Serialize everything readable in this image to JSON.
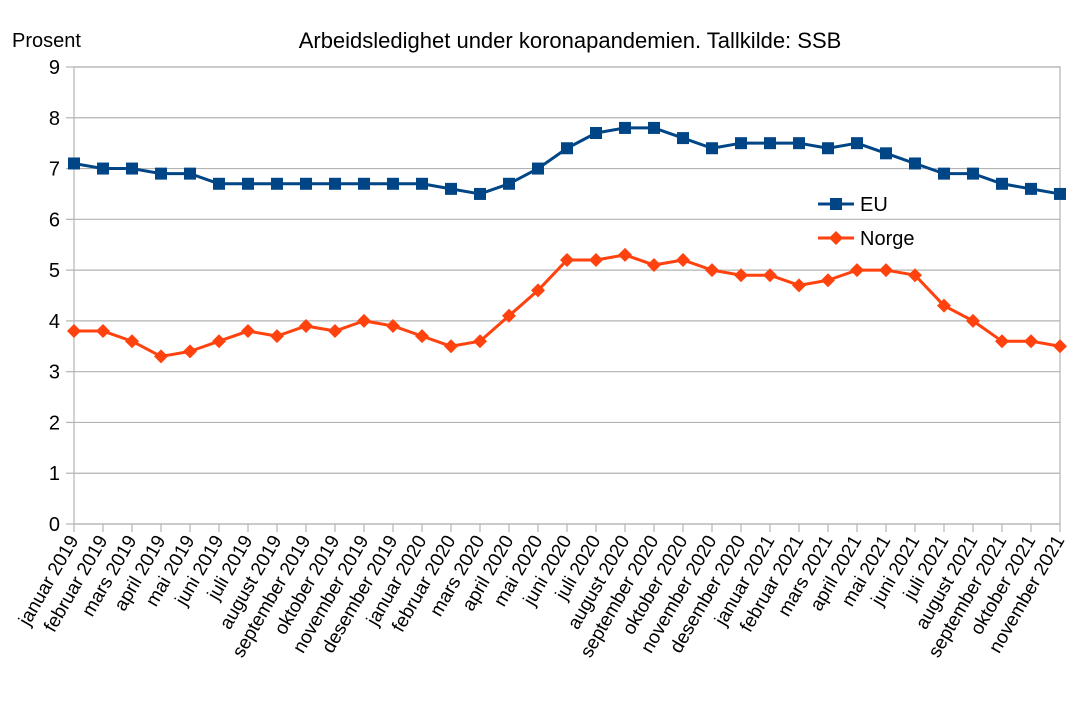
{
  "chart_data": {
    "type": "line",
    "title": "Arbeidsledighet under koronapandemien. Tallkilde: SSB",
    "ylabel": "Prosent",
    "xlabel": "",
    "ylim": [
      0,
      9
    ],
    "yticks": [
      "0",
      "1",
      "2",
      "3",
      "4",
      "5",
      "6",
      "7",
      "8",
      "9"
    ],
    "grid": "horizontal",
    "legend_position": "right",
    "categories": [
      "januar 2019",
      "februar 2019",
      "mars 2019",
      "april 2019",
      "mai 2019",
      "juni 2019",
      "juli 2019",
      "august 2019",
      "september 2019",
      "oktober 2019",
      "november 2019",
      "desember 2019",
      "januar 2020",
      "februar 2020",
      "mars 2020",
      "april 2020",
      "mai 2020",
      "juni 2020",
      "juli 2020",
      "august 2020",
      "september 2020",
      "oktober 2020",
      "november 2020",
      "desember 2020",
      "januar 2021",
      "februar 2021",
      "mars 2021",
      "april 2021",
      "mai 2021",
      "juni 2021",
      "juli 2021",
      "august 2021",
      "september 2021",
      "oktober 2021",
      "november 2021"
    ],
    "series": [
      {
        "name": "EU",
        "color": "#004586",
        "marker": "square",
        "values": [
          7.1,
          7.0,
          7.0,
          6.9,
          6.9,
          6.7,
          6.7,
          6.7,
          6.7,
          6.7,
          6.7,
          6.7,
          6.7,
          6.6,
          6.5,
          6.7,
          7.0,
          7.4,
          7.7,
          7.8,
          7.8,
          7.6,
          7.4,
          7.5,
          7.5,
          7.5,
          7.4,
          7.5,
          7.3,
          7.1,
          6.9,
          6.9,
          6.7,
          6.6,
          6.5
        ]
      },
      {
        "name": "Norge",
        "color": "#ff420e",
        "marker": "diamond",
        "values": [
          3.8,
          3.8,
          3.6,
          3.3,
          3.4,
          3.6,
          3.8,
          3.7,
          3.9,
          3.8,
          4.0,
          3.9,
          3.7,
          3.5,
          3.6,
          4.1,
          4.6,
          5.2,
          5.2,
          5.3,
          5.1,
          5.2,
          5.0,
          4.9,
          4.9,
          4.7,
          4.8,
          5.0,
          5.0,
          4.9,
          4.3,
          4.0,
          3.6,
          3.6,
          3.5
        ]
      }
    ]
  }
}
